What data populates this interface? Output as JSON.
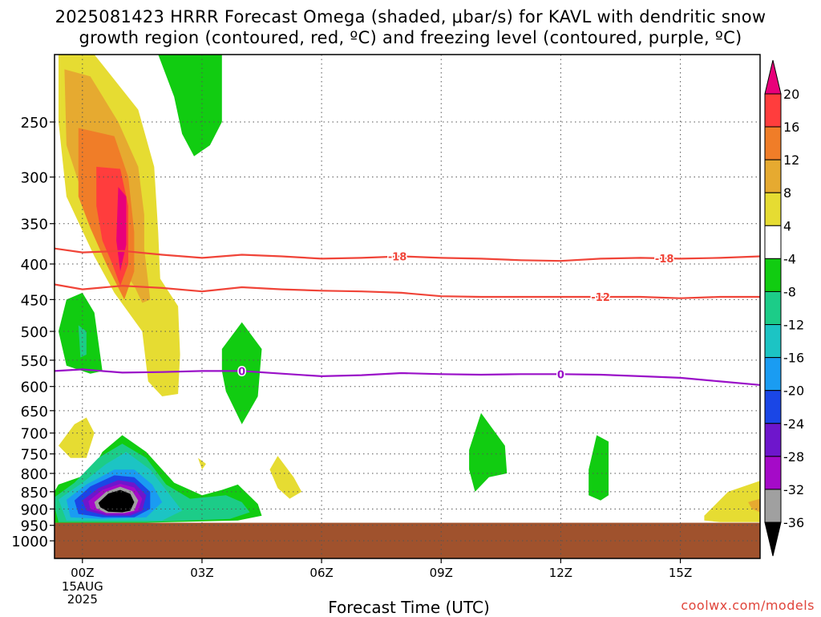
{
  "title_line1": "2025081423 HRRR Forecast Omega (shaded, μbar/s) for KAVL with dendritic snow",
  "title_line2": "growth region (contoured, red, ºC) and freezing level (contoured, purple, ºC)",
  "credit": "coolwx.com/models",
  "chart_data": {
    "type": "heatmap",
    "title": "2025081423 HRRR Forecast Omega (shaded, μbar/s) for KAVL with dendritic snow growth region (contoured, red, ºC) and freezing level (contoured, purple, ºC)",
    "xlabel": "Forecast Time (UTC)",
    "ylabel": "",
    "x_range_hours": [
      -0.7,
      17.0
    ],
    "x_ticks": [
      {
        "hour": 0,
        "label": "00Z",
        "sub": [
          "15AUG",
          "2025"
        ]
      },
      {
        "hour": 3,
        "label": "03Z"
      },
      {
        "hour": 6,
        "label": "06Z"
      },
      {
        "hour": 9,
        "label": "09Z"
      },
      {
        "hour": 12,
        "label": "12Z"
      },
      {
        "hour": 15,
        "label": "15Z"
      }
    ],
    "y_scale": "log-pressure",
    "y_range_hpa": [
      200,
      1060
    ],
    "y_ticks": [
      250,
      300,
      350,
      400,
      450,
      500,
      550,
      600,
      650,
      700,
      750,
      800,
      850,
      900,
      950,
      1000
    ],
    "grid": true,
    "ground_level_hpa": 942,
    "colorbar": {
      "labels": [
        "20",
        "16",
        "12",
        "8",
        "4",
        "-4",
        "-8",
        "-12",
        "-16",
        "-20",
        "-24",
        "-28",
        "-32",
        "-36"
      ],
      "colors": [
        "#e8007a",
        "#ff3d3d",
        "#f07d28",
        "#e6aa30",
        "#e6dc32",
        "#ffffff",
        "#11cc11",
        "#1ccc88",
        "#1cc4c4",
        "#1a9cf2",
        "#1a46e6",
        "#6e16cc",
        "#a50ac8",
        "#a0a0a0",
        "#000000"
      ]
    },
    "contours": [
      {
        "kind": "dendritic",
        "color": "#f04438",
        "label": "-18",
        "points": [
          [
            -0.7,
            380
          ],
          [
            0,
            385
          ],
          [
            1,
            383
          ],
          [
            2,
            388
          ],
          [
            3,
            392
          ],
          [
            4,
            388
          ],
          [
            5,
            390
          ],
          [
            6,
            393
          ],
          [
            7,
            392
          ],
          [
            8,
            390
          ],
          [
            9,
            392
          ],
          [
            10,
            393
          ],
          [
            11,
            395
          ],
          [
            12,
            396
          ],
          [
            13,
            393
          ],
          [
            14,
            392
          ],
          [
            15,
            393
          ],
          [
            16,
            392
          ],
          [
            17,
            390
          ]
        ],
        "label_hours": [
          7.9,
          14.6
        ]
      },
      {
        "kind": "dendritic",
        "color": "#f04438",
        "label": "-12",
        "points": [
          [
            -0.7,
            428
          ],
          [
            0,
            435
          ],
          [
            1,
            430
          ],
          [
            2,
            433
          ],
          [
            3,
            438
          ],
          [
            4,
            432
          ],
          [
            5,
            435
          ],
          [
            6,
            437
          ],
          [
            7,
            438
          ],
          [
            8,
            440
          ],
          [
            9,
            445
          ],
          [
            10,
            446
          ],
          [
            11,
            446
          ],
          [
            12,
            446
          ],
          [
            13,
            446
          ],
          [
            14,
            446
          ],
          [
            15,
            448
          ],
          [
            16,
            446
          ],
          [
            17,
            446
          ]
        ],
        "label_hours": [
          13.0
        ]
      },
      {
        "kind": "freezing",
        "color": "#9a10c8",
        "label": "0",
        "points": [
          [
            -0.7,
            570
          ],
          [
            0,
            567
          ],
          [
            1,
            573
          ],
          [
            2,
            572
          ],
          [
            3,
            570
          ],
          [
            4,
            570
          ],
          [
            5,
            575
          ],
          [
            6,
            580
          ],
          [
            7,
            578
          ],
          [
            8,
            574
          ],
          [
            9,
            576
          ],
          [
            10,
            577
          ],
          [
            11,
            576
          ],
          [
            12,
            576
          ],
          [
            13,
            577
          ],
          [
            14,
            580
          ],
          [
            15,
            583
          ],
          [
            16,
            590
          ],
          [
            17,
            597
          ]
        ],
        "label_hours": [
          4.0,
          12.0
        ]
      }
    ],
    "shaded_regions": [
      {
        "value": 4,
        "polygon": [
          [
            -0.6,
            200
          ],
          [
            0.3,
            200
          ],
          [
            1.4,
            240
          ],
          [
            1.8,
            290
          ],
          [
            1.9,
            360
          ],
          [
            1.95,
            420
          ],
          [
            2.4,
            460
          ],
          [
            2.45,
            540
          ],
          [
            2.4,
            615
          ],
          [
            2.0,
            620
          ],
          [
            1.65,
            590
          ],
          [
            1.5,
            500
          ],
          [
            0.8,
            440
          ],
          [
            0.3,
            390
          ],
          [
            -0.4,
            320
          ],
          [
            -0.6,
            250
          ]
        ]
      },
      {
        "value": 8,
        "polygon": [
          [
            -0.45,
            210
          ],
          [
            0.2,
            215
          ],
          [
            0.9,
            250
          ],
          [
            1.4,
            290
          ],
          [
            1.55,
            340
          ],
          [
            1.55,
            380
          ],
          [
            1.7,
            450
          ],
          [
            1.5,
            455
          ],
          [
            1.3,
            430
          ],
          [
            0.6,
            380
          ],
          [
            0.1,
            330
          ],
          [
            -0.4,
            270
          ]
        ]
      },
      {
        "value": 12,
        "polygon": [
          [
            -0.1,
            255
          ],
          [
            0.8,
            262
          ],
          [
            1.15,
            300
          ],
          [
            1.3,
            360
          ],
          [
            1.3,
            410
          ],
          [
            1.05,
            450
          ],
          [
            0.6,
            400
          ],
          [
            0.2,
            355
          ],
          [
            -0.1,
            320
          ]
        ]
      },
      {
        "value": 16,
        "polygon": [
          [
            0.35,
            290
          ],
          [
            0.95,
            292
          ],
          [
            1.15,
            330
          ],
          [
            1.15,
            400
          ],
          [
            0.95,
            430
          ],
          [
            0.75,
            400
          ],
          [
            0.5,
            370
          ],
          [
            0.35,
            330
          ]
        ]
      },
      {
        "value": 20,
        "polygon": [
          [
            0.9,
            310
          ],
          [
            1.1,
            320
          ],
          [
            1.1,
            375
          ],
          [
            0.95,
            410
          ],
          [
            0.85,
            370
          ]
        ]
      },
      {
        "value": 4,
        "polygon": [
          [
            -0.6,
            730
          ],
          [
            -0.2,
            680
          ],
          [
            0.1,
            665
          ],
          [
            0.3,
            700
          ],
          [
            0.1,
            760
          ],
          [
            -0.3,
            760
          ]
        ]
      },
      {
        "value": 4,
        "polygon": [
          [
            2.9,
            760
          ],
          [
            3.1,
            775
          ],
          [
            3.0,
            790
          ]
        ]
      },
      {
        "value": 4,
        "polygon": [
          [
            4.7,
            790
          ],
          [
            4.9,
            755
          ],
          [
            5.3,
            810
          ],
          [
            5.5,
            850
          ],
          [
            5.2,
            870
          ],
          [
            4.9,
            840
          ]
        ]
      },
      {
        "value": 4,
        "polygon": [
          [
            15.6,
            920
          ],
          [
            16.2,
            850
          ],
          [
            17.0,
            820
          ],
          [
            17.0,
            940
          ],
          [
            16.0,
            940
          ],
          [
            15.6,
            935
          ]
        ]
      },
      {
        "value": 8,
        "polygon": [
          [
            16.7,
            880
          ],
          [
            17.0,
            870
          ],
          [
            17.0,
            910
          ],
          [
            16.8,
            900
          ]
        ]
      },
      {
        "value": -4,
        "polygon": [
          [
            1.9,
            200
          ],
          [
            3.5,
            200
          ],
          [
            3.5,
            250
          ],
          [
            3.2,
            270
          ],
          [
            2.8,
            280
          ],
          [
            2.5,
            260
          ],
          [
            2.3,
            230
          ]
        ]
      },
      {
        "value": -4,
        "polygon": [
          [
            -0.6,
            500
          ],
          [
            -0.4,
            450
          ],
          [
            0,
            440
          ],
          [
            0.3,
            470
          ],
          [
            0.5,
            570
          ],
          [
            0.2,
            575
          ],
          [
            -0.4,
            560
          ]
        ]
      },
      {
        "value": -8,
        "polygon": [
          [
            -0.1,
            490
          ],
          [
            0.1,
            500
          ],
          [
            0.1,
            540
          ],
          [
            -0.05,
            545
          ]
        ]
      },
      {
        "value": -4,
        "polygon": [
          [
            3.5,
            530
          ],
          [
            4,
            485
          ],
          [
            4.5,
            530
          ],
          [
            4.4,
            620
          ],
          [
            4.0,
            680
          ],
          [
            3.6,
            610
          ],
          [
            3.5,
            570
          ]
        ]
      },
      {
        "value": -4,
        "polygon": [
          [
            9.7,
            740
          ],
          [
            10.0,
            655
          ],
          [
            10.6,
            730
          ],
          [
            10.65,
            800
          ],
          [
            10.2,
            810
          ],
          [
            9.85,
            850
          ],
          [
            9.7,
            790
          ]
        ]
      },
      {
        "value": -4,
        "polygon": [
          [
            12.7,
            790
          ],
          [
            12.9,
            705
          ],
          [
            13.2,
            720
          ],
          [
            13.2,
            860
          ],
          [
            13.0,
            875
          ],
          [
            12.7,
            860
          ]
        ]
      },
      {
        "value": -4,
        "polygon": [
          [
            -0.8,
            868
          ],
          [
            -0.6,
            830
          ],
          [
            0.2,
            800
          ],
          [
            0.5,
            745
          ],
          [
            1.0,
            705
          ],
          [
            1.6,
            745
          ],
          [
            2.3,
            825
          ],
          [
            3.0,
            860
          ],
          [
            3.5,
            845
          ],
          [
            3.9,
            830
          ],
          [
            4.4,
            885
          ],
          [
            4.5,
            920
          ],
          [
            3.9,
            935
          ],
          [
            1.5,
            942
          ],
          [
            -0.7,
            942
          ]
        ]
      },
      {
        "value": -8,
        "polygon": [
          [
            -0.75,
            870
          ],
          [
            -0.2,
            825
          ],
          [
            0.4,
            760
          ],
          [
            1.0,
            725
          ],
          [
            1.6,
            760
          ],
          [
            2.1,
            830
          ],
          [
            2.7,
            870
          ],
          [
            3.6,
            860
          ],
          [
            4.0,
            880
          ],
          [
            4.2,
            910
          ],
          [
            3.7,
            930
          ],
          [
            1.6,
            940
          ],
          [
            -0.6,
            940
          ]
        ]
      },
      {
        "value": -12,
        "polygon": [
          [
            -0.6,
            872
          ],
          [
            0.0,
            825
          ],
          [
            0.6,
            775
          ],
          [
            1.1,
            745
          ],
          [
            1.7,
            790
          ],
          [
            2.2,
            860
          ],
          [
            2.5,
            905
          ],
          [
            2.0,
            935
          ],
          [
            0.9,
            935
          ],
          [
            -0.4,
            935
          ]
        ]
      },
      {
        "value": -16,
        "polygon": [
          [
            -0.4,
            873
          ],
          [
            0.1,
            830
          ],
          [
            0.8,
            790
          ],
          [
            1.3,
            790
          ],
          [
            1.75,
            830
          ],
          [
            2.0,
            880
          ],
          [
            1.6,
            925
          ],
          [
            0.5,
            930
          ],
          [
            -0.3,
            925
          ]
        ]
      },
      {
        "value": -20,
        "polygon": [
          [
            -0.2,
            875
          ],
          [
            0.2,
            835
          ],
          [
            0.8,
            805
          ],
          [
            1.3,
            810
          ],
          [
            1.7,
            850
          ],
          [
            1.7,
            900
          ],
          [
            1.3,
            925
          ],
          [
            0.5,
            925
          ],
          [
            -0.1,
            915
          ]
        ]
      },
      {
        "value": -24,
        "polygon": [
          [
            0.0,
            875
          ],
          [
            0.4,
            840
          ],
          [
            0.9,
            818
          ],
          [
            1.3,
            825
          ],
          [
            1.6,
            860
          ],
          [
            1.5,
            905
          ],
          [
            1.2,
            920
          ],
          [
            0.6,
            920
          ],
          [
            0.1,
            905
          ]
        ]
      },
      {
        "value": -28,
        "polygon": [
          [
            0.15,
            877
          ],
          [
            0.5,
            845
          ],
          [
            0.95,
            828
          ],
          [
            1.3,
            838
          ],
          [
            1.5,
            870
          ],
          [
            1.4,
            905
          ],
          [
            1.15,
            915
          ],
          [
            0.6,
            915
          ],
          [
            0.2,
            900
          ]
        ]
      },
      {
        "value": -32,
        "polygon": [
          [
            0.3,
            880
          ],
          [
            0.6,
            850
          ],
          [
            0.95,
            836
          ],
          [
            1.25,
            848
          ],
          [
            1.4,
            875
          ],
          [
            1.3,
            905
          ],
          [
            1.05,
            912
          ],
          [
            0.6,
            912
          ],
          [
            0.35,
            898
          ]
        ]
      },
      {
        "value": -36,
        "polygon": [
          [
            0.4,
            882
          ],
          [
            0.65,
            855
          ],
          [
            0.95,
            845
          ],
          [
            1.2,
            856
          ],
          [
            1.3,
            880
          ],
          [
            1.2,
            905
          ],
          [
            1.0,
            910
          ],
          [
            0.65,
            908
          ],
          [
            0.45,
            895
          ]
        ]
      }
    ]
  }
}
